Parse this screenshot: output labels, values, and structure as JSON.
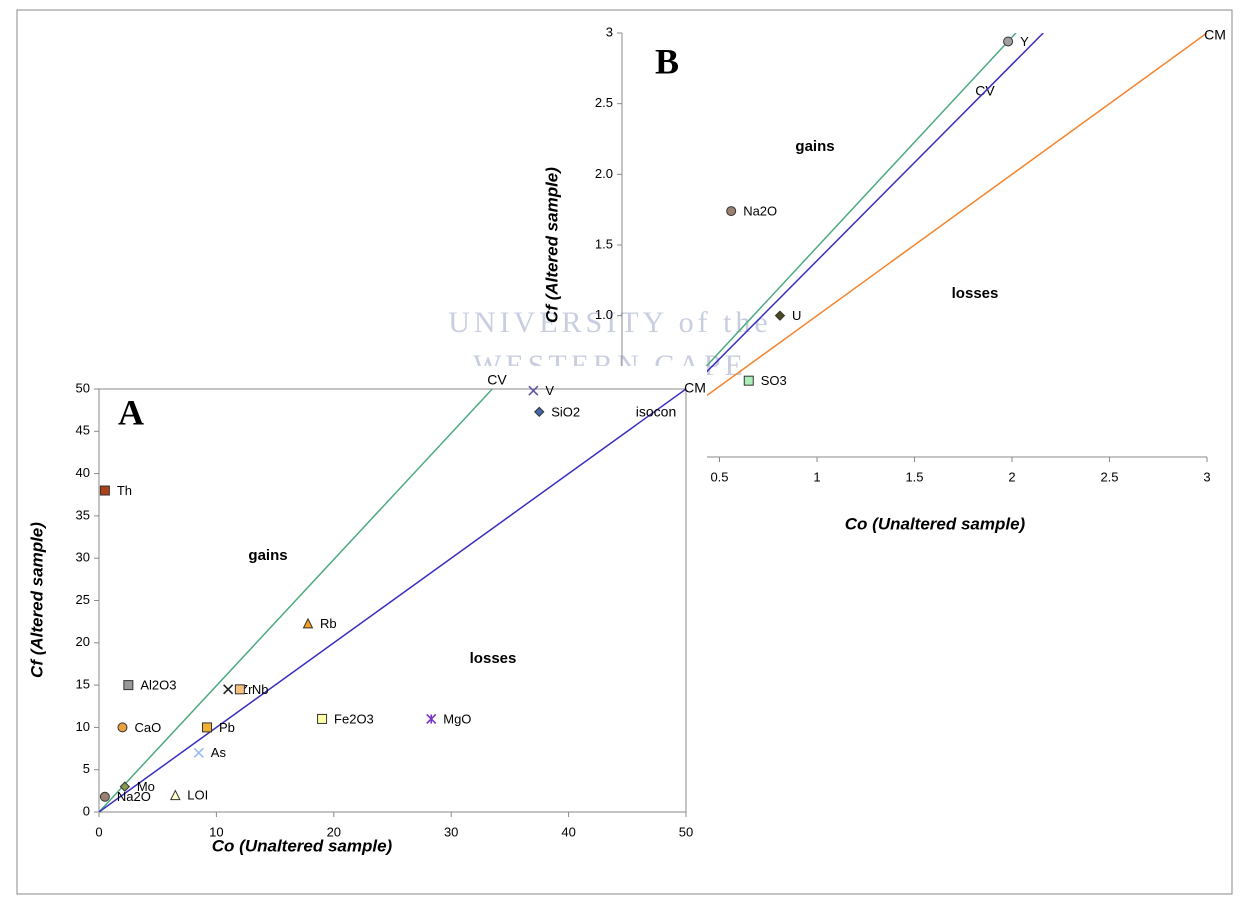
{
  "watermark": [
    "UNIVERSITY of the",
    "WESTERN CAPE"
  ],
  "chart_data": [
    {
      "type": "scatter",
      "panel": "B",
      "x_label": "Co (Unaltered sample)",
      "y_label": "Cf (Altered sample)",
      "xlim": [
        0,
        3
      ],
      "ylim": [
        0,
        3
      ],
      "xticks": [
        0.5,
        1,
        1.5,
        2,
        2.5,
        3
      ],
      "yticks": [
        {
          "value": 1,
          "label": "1.0"
        },
        1.5,
        {
          "value": 2,
          "label": "2.0"
        },
        2.5,
        3
      ],
      "annotations": [
        "gains",
        "losses"
      ],
      "lines": [
        {
          "label": "CV",
          "color": "#4daa80",
          "x": [
            0,
            2.02
          ],
          "values": [
            0,
            3
          ]
        },
        {
          "color": "#3a2ec0",
          "x": [
            0,
            2.16
          ],
          "values": [
            0,
            3
          ]
        },
        {
          "label": "CM",
          "color": "#f5832a",
          "x": [
            0,
            3
          ],
          "values": [
            0,
            3
          ]
        }
      ],
      "series": [
        {
          "name": "Y",
          "color": "#a0a0a0",
          "marker": "circle",
          "x": [
            1.98
          ],
          "values": [
            2.94
          ]
        },
        {
          "name": "Na2O",
          "color": "#9a8070",
          "marker": "circle",
          "x": [
            0.56
          ],
          "values": [
            1.74
          ]
        },
        {
          "name": "U",
          "color": "#4a4a20",
          "marker": "diamond",
          "x": [
            0.81
          ],
          "values": [
            1.0
          ]
        },
        {
          "name": "SO3",
          "color": "#aaeebb",
          "marker": "square",
          "x": [
            0.65
          ],
          "values": [
            0.54
          ]
        }
      ]
    },
    {
      "type": "scatter",
      "panel": "A",
      "x_label": "Co (Unaltered sample)",
      "y_label": "Cf (Altered sample)",
      "xlim": [
        0,
        50
      ],
      "ylim": [
        0,
        50
      ],
      "xticks": [
        0,
        10,
        20,
        30,
        40,
        50
      ],
      "yticks": [
        0,
        5,
        10,
        15,
        20,
        25,
        30,
        35,
        40,
        45,
        50
      ],
      "annotations": [
        "gains",
        "losses"
      ],
      "lines": [
        {
          "label": "CV",
          "color": "#4daa80",
          "x": [
            0,
            33.5
          ],
          "values": [
            0,
            50
          ]
        },
        {
          "name": "isocon",
          "label": "CM",
          "color": "#3a2ec0",
          "x": [
            0,
            50
          ],
          "values": [
            0,
            50
          ]
        }
      ],
      "series": [
        {
          "name": "Th",
          "color": "#b0401a",
          "marker": "square",
          "x": [
            0.5
          ],
          "values": [
            38
          ]
        },
        {
          "name": "Al2O3",
          "color": "#999999",
          "marker": "square",
          "x": [
            2.5
          ],
          "values": [
            15
          ]
        },
        {
          "name": "CaO",
          "color": "#e8a040",
          "marker": "circle",
          "x": [
            2
          ],
          "values": [
            10
          ]
        },
        {
          "name": "Mo",
          "color": "#8a9a50",
          "marker": "diamond",
          "x": [
            2.2
          ],
          "values": [
            3
          ]
        },
        {
          "name": "Na2O",
          "color": "#9a8070",
          "marker": "circle",
          "x": [
            0.5
          ],
          "values": [
            1.8
          ]
        },
        {
          "name": "LOI",
          "color": "#ffffcc",
          "marker": "triangle",
          "x": [
            6.5
          ],
          "values": [
            2
          ]
        },
        {
          "name": "As",
          "color": "#99bbee",
          "marker": "x",
          "x": [
            8.5
          ],
          "values": [
            7
          ]
        },
        {
          "name": "Pb",
          "color": "#f0b030",
          "marker": "square",
          "x": [
            9.2
          ],
          "values": [
            10
          ]
        },
        {
          "name": "Zr",
          "color": "#222222",
          "marker": "x",
          "x": [
            11
          ],
          "values": [
            14.5
          ]
        },
        {
          "name": "Nb",
          "color": "#f5c080",
          "marker": "square",
          "x": [
            12
          ],
          "values": [
            14.5
          ]
        },
        {
          "name": "Rb",
          "color": "#f5a020",
          "marker": "triangle",
          "x": [
            17.8
          ],
          "values": [
            22.3
          ]
        },
        {
          "name": "Fe2O3",
          "color": "#ffffaa",
          "marker": "square",
          "x": [
            19
          ],
          "values": [
            11
          ]
        },
        {
          "name": "MgO",
          "color": "#7733cc",
          "marker": "star",
          "x": [
            28.3
          ],
          "values": [
            11
          ]
        },
        {
          "name": "V",
          "color": "#6655aa",
          "marker": "x",
          "x": [
            37
          ],
          "values": [
            49.8
          ]
        },
        {
          "name": "SiO2",
          "color": "#4466aa",
          "marker": "diamond",
          "x": [
            37.5
          ],
          "values": [
            47.3
          ]
        }
      ]
    }
  ]
}
